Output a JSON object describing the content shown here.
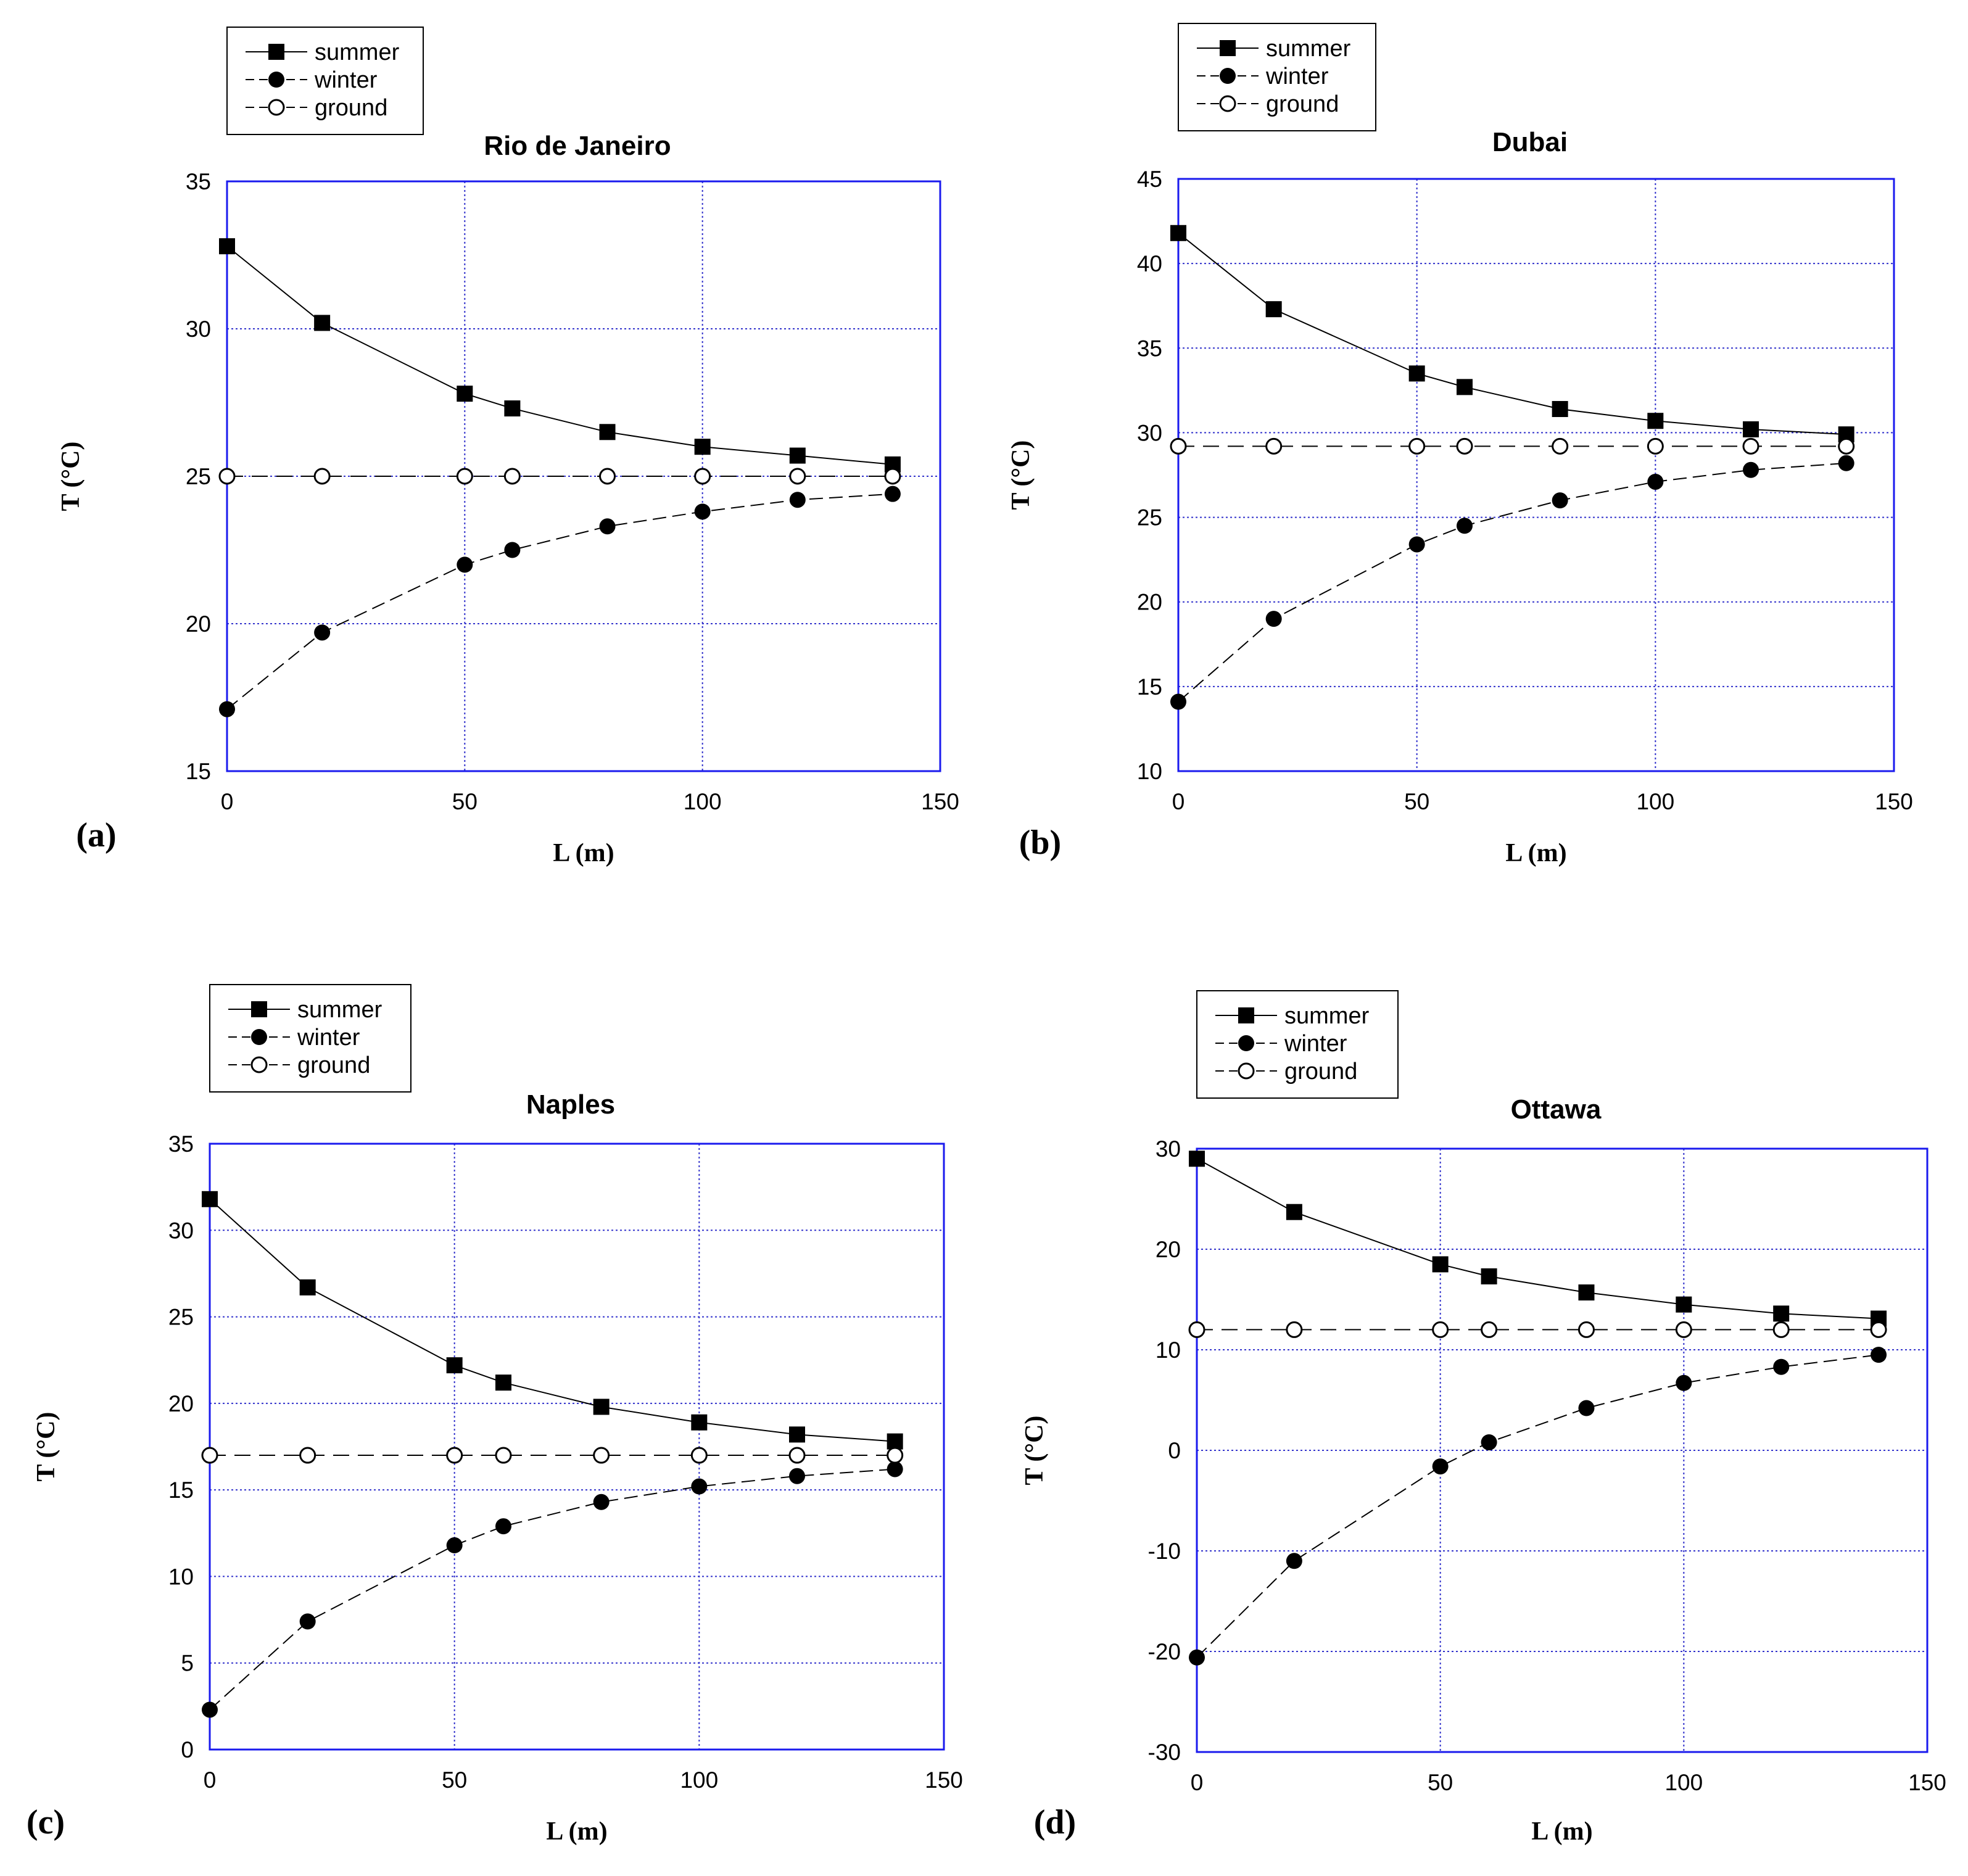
{
  "chart_data": [
    {
      "panel": "(a)",
      "type": "line",
      "title": "Rio de Janeiro",
      "xlabel": "L (m)",
      "ylabel": "T (°C)",
      "xlim": [
        0,
        150
      ],
      "ylim": [
        15,
        35
      ],
      "xticks": [
        0,
        50,
        100,
        150
      ],
      "yticks": [
        15,
        20,
        25,
        30,
        35
      ],
      "grid": true,
      "legend": "top-left, above plot",
      "x": [
        0,
        20,
        50,
        60,
        80,
        100,
        120,
        140
      ],
      "series": [
        {
          "name": "summer",
          "marker": "filled-square",
          "line": "solid",
          "values": [
            32.8,
            30.2,
            27.8,
            27.3,
            26.5,
            26.0,
            25.7,
            25.4
          ]
        },
        {
          "name": "winter",
          "marker": "filled-circle",
          "line": "dashed",
          "values": [
            17.1,
            19.7,
            22.0,
            22.5,
            23.3,
            23.8,
            24.2,
            24.4
          ]
        },
        {
          "name": "ground",
          "marker": "open-circle",
          "line": "dashed",
          "values": [
            25,
            25,
            25,
            25,
            25,
            25,
            25,
            25
          ]
        }
      ]
    },
    {
      "panel": "(b)",
      "type": "line",
      "title": "Dubai",
      "xlabel": "L (m)",
      "ylabel": "T (°C)",
      "xlim": [
        0,
        150
      ],
      "ylim": [
        10,
        45
      ],
      "xticks": [
        0,
        50,
        100,
        150
      ],
      "yticks": [
        10,
        15,
        20,
        25,
        30,
        35,
        40,
        45
      ],
      "grid": true,
      "legend": "top-left, above plot",
      "x": [
        0,
        20,
        50,
        60,
        80,
        100,
        120,
        140
      ],
      "series": [
        {
          "name": "summer",
          "marker": "filled-square",
          "line": "solid",
          "values": [
            41.8,
            37.3,
            33.5,
            32.7,
            31.4,
            30.7,
            30.2,
            29.9
          ]
        },
        {
          "name": "winter",
          "marker": "filled-circle",
          "line": "dashed",
          "values": [
            14.1,
            19.0,
            23.4,
            24.5,
            26.0,
            27.1,
            27.8,
            28.2
          ]
        },
        {
          "name": "ground",
          "marker": "open-circle",
          "line": "dashed",
          "values": [
            29.2,
            29.2,
            29.2,
            29.2,
            29.2,
            29.2,
            29.2,
            29.2
          ]
        }
      ]
    },
    {
      "panel": "(c)",
      "type": "line",
      "title": "Naples",
      "xlabel": "L (m)",
      "ylabel": "T (°C)",
      "xlim": [
        0,
        150
      ],
      "ylim": [
        0,
        35
      ],
      "xticks": [
        0,
        50,
        100,
        150
      ],
      "yticks": [
        0,
        5,
        10,
        15,
        20,
        25,
        30,
        35
      ],
      "grid": true,
      "legend": "top-left, above plot",
      "x": [
        0,
        20,
        50,
        60,
        80,
        100,
        120,
        140
      ],
      "series": [
        {
          "name": "summer",
          "marker": "filled-square",
          "line": "solid",
          "values": [
            31.8,
            26.7,
            22.2,
            21.2,
            19.8,
            18.9,
            18.2,
            17.8
          ]
        },
        {
          "name": "winter",
          "marker": "filled-circle",
          "line": "dashed",
          "values": [
            2.3,
            7.4,
            11.8,
            12.9,
            14.3,
            15.2,
            15.8,
            16.2
          ]
        },
        {
          "name": "ground",
          "marker": "open-circle",
          "line": "dashed",
          "values": [
            17,
            17,
            17,
            17,
            17,
            17,
            17,
            17
          ]
        }
      ]
    },
    {
      "panel": "(d)",
      "type": "line",
      "title": "Ottawa",
      "xlabel": "L (m)",
      "ylabel": "T (°C)",
      "xlim": [
        0,
        150
      ],
      "ylim": [
        -30,
        30
      ],
      "xticks": [
        0,
        50,
        100,
        150
      ],
      "yticks": [
        -30,
        -20,
        -10,
        0,
        10,
        20,
        30
      ],
      "grid": true,
      "legend": "top-left, above plot",
      "x": [
        0,
        20,
        50,
        60,
        80,
        100,
        120,
        140
      ],
      "series": [
        {
          "name": "summer",
          "marker": "filled-square",
          "line": "solid",
          "values": [
            29.0,
            23.7,
            18.5,
            17.3,
            15.7,
            14.5,
            13.6,
            13.1
          ]
        },
        {
          "name": "winter",
          "marker": "filled-circle",
          "line": "dashed",
          "values": [
            -20.6,
            -11.0,
            -1.6,
            0.8,
            4.2,
            6.7,
            8.3,
            9.5
          ]
        },
        {
          "name": "ground",
          "marker": "open-circle",
          "line": "dashed",
          "values": [
            12,
            12,
            12,
            12,
            12,
            12,
            12,
            12
          ]
        }
      ]
    }
  ]
}
